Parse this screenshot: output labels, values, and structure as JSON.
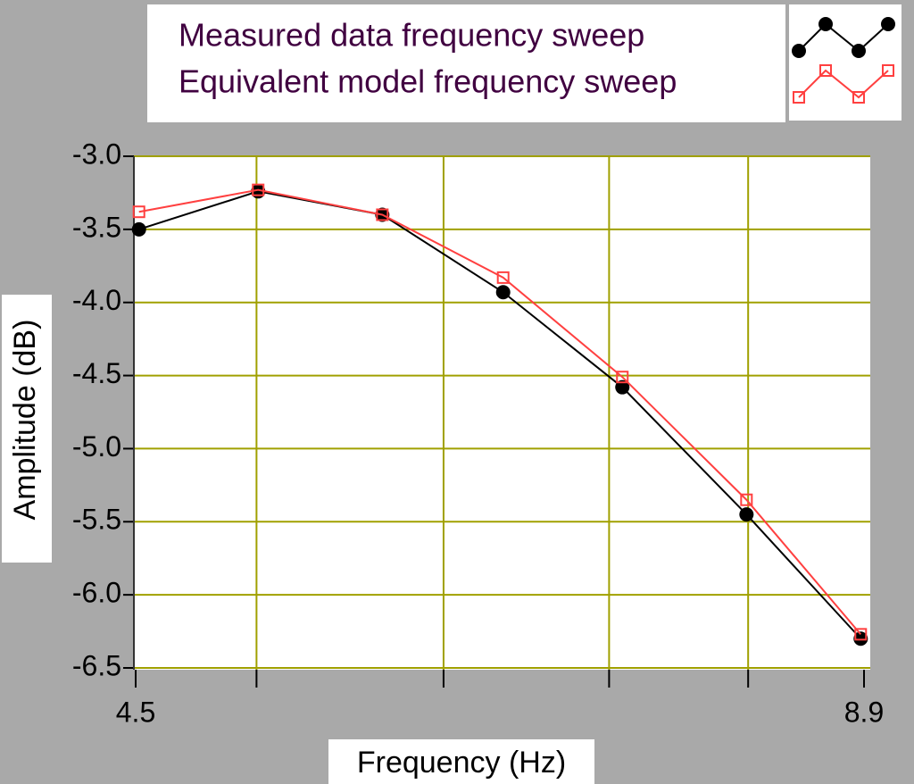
{
  "chart_data": {
    "type": "line",
    "xlabel": "Frequency (Hz)",
    "ylabel": "Amplitude (dB)",
    "x": [
      4.52,
      5.24,
      5.99,
      6.72,
      7.44,
      8.19,
      8.88
    ],
    "series": [
      {
        "name": "Measured data frequency sweep",
        "color": "#000000",
        "marker": "circle",
        "values": [
          -3.5,
          -3.24,
          -3.4,
          -3.93,
          -4.58,
          -5.45,
          -6.3
        ]
      },
      {
        "name": "Equivalent model frequency sweep",
        "color": "#ff4040",
        "marker": "square",
        "values": [
          -3.38,
          -3.23,
          -3.4,
          -3.83,
          -4.51,
          -5.35,
          -6.27
        ]
      }
    ],
    "xlim": [
      4.5,
      8.9
    ],
    "xticks": [
      4.5,
      8.9
    ],
    "xgrid": [
      5.23,
      6.36,
      7.36,
      8.2
    ],
    "ylim": [
      -6.5,
      -3.0
    ],
    "yticks": [
      {
        "value": -3.0,
        "label": "-3.0"
      },
      {
        "value": -3.5,
        "label": "-3.5"
      },
      {
        "value": -4.0,
        "label": "-4.0"
      },
      {
        "value": -4.5,
        "label": "-4.5"
      },
      {
        "value": -5.0,
        "label": "-5.0"
      },
      {
        "value": -5.5,
        "label": "-5.5"
      },
      {
        "value": -6.0,
        "label": "-6.0"
      },
      {
        "value": -6.5,
        "label": "-6.5"
      }
    ],
    "grid": true,
    "grid_color": "#a0a000"
  }
}
